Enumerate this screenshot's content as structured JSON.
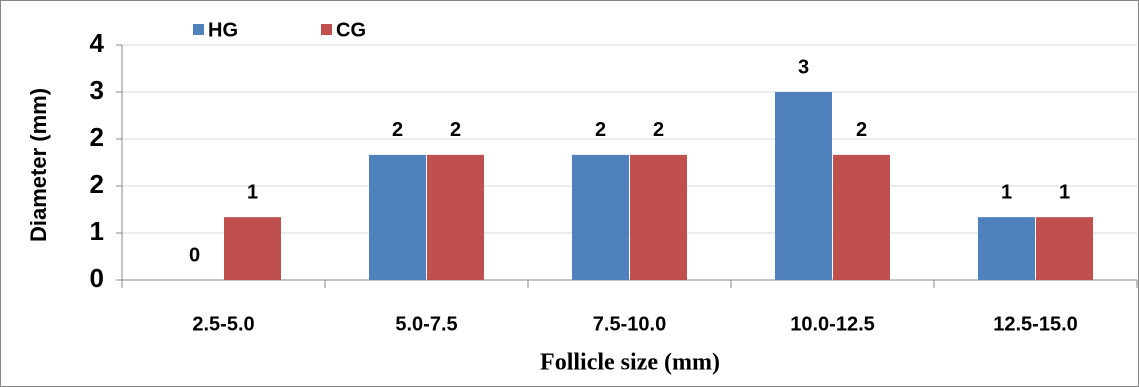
{
  "chart_data": {
    "type": "bar",
    "ylabel": "Diameter (mm)",
    "xlabel": "Follicle size (mm)",
    "categories": [
      "2.5-5.0",
      "5.0-7.5",
      "7.5-10.0",
      "10.0-12.5",
      "12.5-15.0"
    ],
    "series": [
      {
        "name": "HG",
        "color": "#4f81bd",
        "values": [
          0,
          2.13,
          2.13,
          3.2,
          1.07
        ],
        "value_labels": [
          "0",
          "2",
          "2",
          "3",
          "1"
        ]
      },
      {
        "name": "CG",
        "color": "#c0504d",
        "values": [
          1.07,
          2.13,
          2.13,
          2.13,
          1.07
        ],
        "value_labels": [
          "1",
          "2",
          "2",
          "2",
          "1"
        ]
      }
    ],
    "ylim": [
      0,
      4
    ],
    "yticks": [
      0,
      {
        "value": 0.8,
        "label": "1"
      },
      {
        "value": 1.6,
        "label": "2"
      },
      {
        "value": 2.4,
        "label": "2"
      },
      {
        "value": 3.2,
        "label": "3"
      },
      4
    ],
    "grid": true,
    "legend": "top"
  }
}
